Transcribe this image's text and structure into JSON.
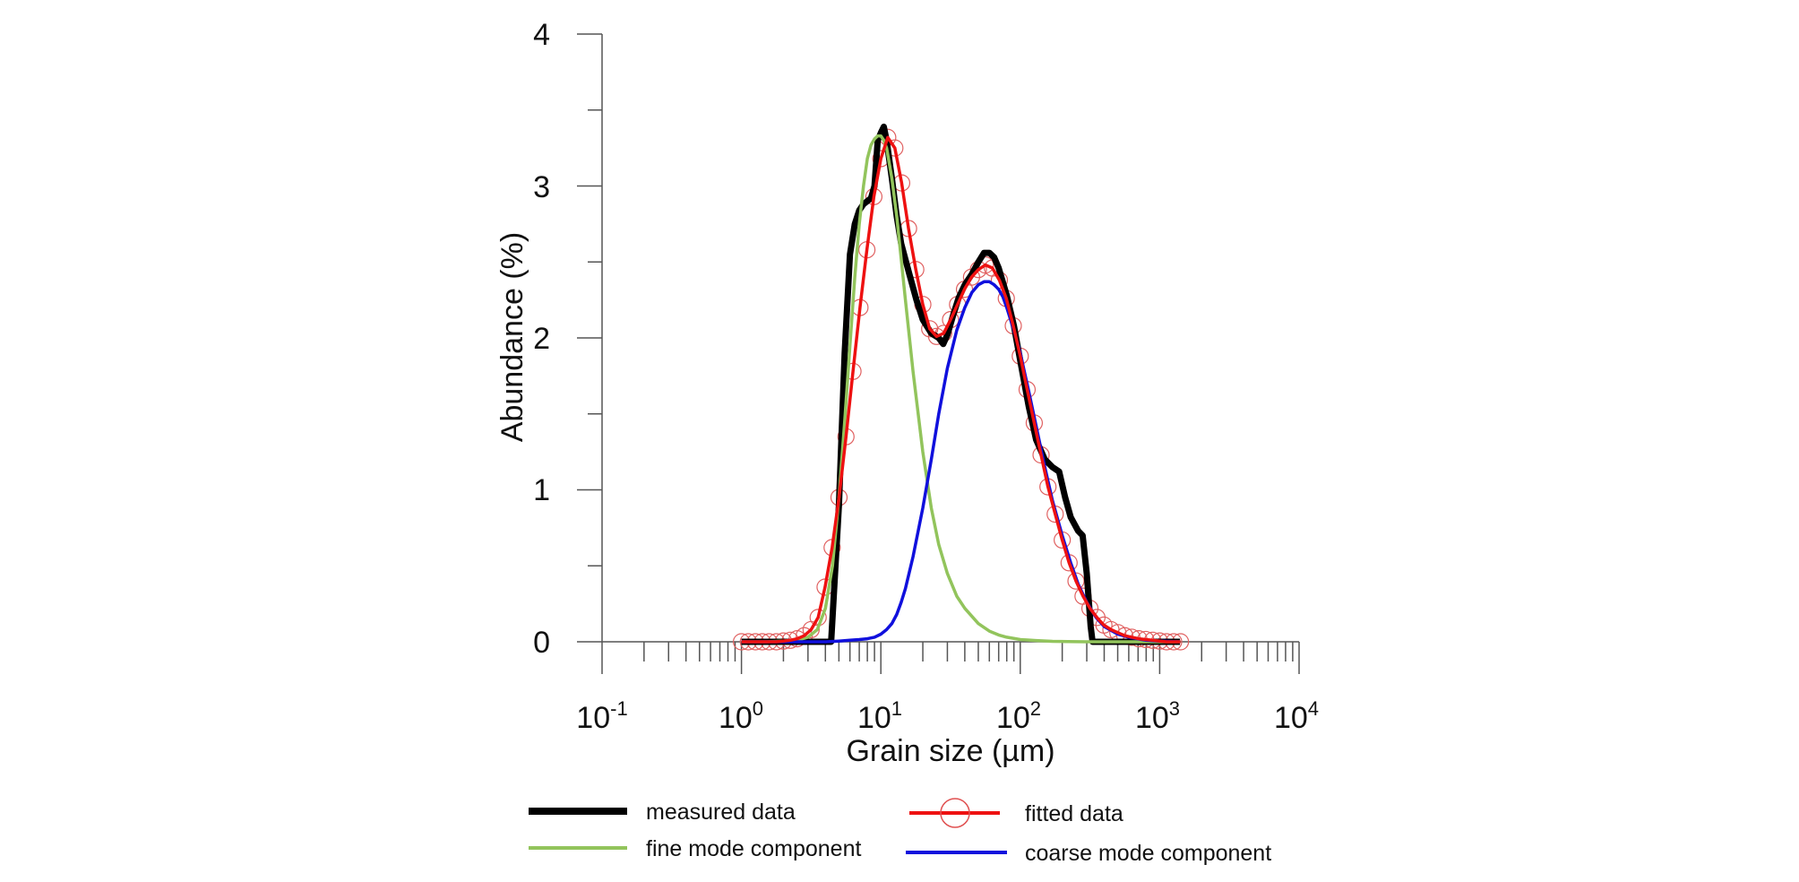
{
  "chart_data": {
    "type": "line",
    "title": "",
    "xlabel": "Grain size (µm)",
    "ylabel": "Abundance (%)",
    "xscale": "log",
    "xlim": [
      0.1,
      10000
    ],
    "ylim": [
      0,
      4
    ],
    "x_ticks": [
      {
        "base": "10",
        "exp": "-1",
        "value": 0.1
      },
      {
        "base": "10",
        "exp": "0",
        "value": 1
      },
      {
        "base": "10",
        "exp": "1",
        "value": 10
      },
      {
        "base": "10",
        "exp": "2",
        "value": 100
      },
      {
        "base": "10",
        "exp": "3",
        "value": 1000
      },
      {
        "base": "10",
        "exp": "4",
        "value": 10000
      }
    ],
    "y_ticks": [
      "0",
      "1",
      "2",
      "3",
      "4"
    ],
    "legend_position": "bottom",
    "series": [
      {
        "name": "measured data",
        "color": "#000000",
        "style": "thick-line",
        "x": [
          1,
          2,
          3,
          4,
          4.4,
          5,
          5.5,
          6,
          6.5,
          7,
          7.5,
          8,
          8.5,
          9,
          9.5,
          10,
          10.5,
          11,
          12,
          13,
          14,
          16,
          18,
          20,
          23,
          26,
          28,
          30,
          33,
          36,
          40,
          45,
          50,
          55,
          60,
          65,
          70,
          80,
          90,
          100,
          115,
          130,
          150,
          170,
          190,
          210,
          230,
          260,
          280,
          300,
          320,
          330,
          400,
          600,
          1000,
          1400
        ],
        "y": [
          0,
          0,
          0,
          0,
          0,
          0.9,
          1.9,
          2.55,
          2.75,
          2.84,
          2.88,
          2.9,
          2.92,
          3.0,
          3.3,
          3.35,
          3.39,
          3.3,
          3.05,
          2.8,
          2.62,
          2.42,
          2.25,
          2.12,
          2.03,
          2.0,
          1.96,
          2.02,
          2.15,
          2.26,
          2.35,
          2.42,
          2.5,
          2.56,
          2.56,
          2.53,
          2.46,
          2.28,
          2.08,
          1.85,
          1.55,
          1.33,
          1.2,
          1.15,
          1.12,
          0.95,
          0.82,
          0.73,
          0.7,
          0.45,
          0.1,
          0,
          0,
          0,
          0,
          0
        ]
      },
      {
        "name": "fitted data",
        "color": "#ee1111",
        "style": "line-with-circles",
        "x": [
          1,
          1.12,
          1.26,
          1.41,
          1.58,
          1.78,
          2,
          2.24,
          2.51,
          2.82,
          3.16,
          3.55,
          3.98,
          4.47,
          5.01,
          5.62,
          6.31,
          7.08,
          7.94,
          8.91,
          10,
          11.2,
          12.6,
          14.1,
          15.8,
          17.8,
          20,
          22.4,
          25.1,
          28.2,
          31.6,
          35.5,
          39.8,
          44.7,
          50.1,
          56.2,
          63.1,
          70.8,
          79.4,
          89.1,
          100,
          112,
          126,
          141,
          158,
          178,
          200,
          224,
          251,
          282,
          316,
          355,
          398,
          447,
          501,
          562,
          631,
          708,
          794,
          891,
          1000,
          1120,
          1260,
          1410
        ],
        "y": [
          0,
          0,
          0,
          0,
          0,
          0,
          0.005,
          0.01,
          0.02,
          0.04,
          0.08,
          0.16,
          0.36,
          0.62,
          0.95,
          1.35,
          1.78,
          2.2,
          2.58,
          2.93,
          3.18,
          3.32,
          3.25,
          3.02,
          2.72,
          2.45,
          2.22,
          2.06,
          2.01,
          2.03,
          2.12,
          2.22,
          2.32,
          2.4,
          2.45,
          2.48,
          2.46,
          2.38,
          2.26,
          2.08,
          1.88,
          1.66,
          1.44,
          1.23,
          1.02,
          0.84,
          0.67,
          0.52,
          0.4,
          0.3,
          0.22,
          0.16,
          0.11,
          0.08,
          0.06,
          0.04,
          0.03,
          0.02,
          0.015,
          0.01,
          0.005,
          0,
          0,
          0
        ]
      },
      {
        "name": "fine mode component",
        "color": "#92c45c",
        "style": "line",
        "x": [
          1,
          1.5,
          2,
          2.5,
          3,
          3.5,
          4,
          4.5,
          5,
          5.5,
          6,
          6.5,
          7,
          7.5,
          8,
          8.5,
          9,
          9.5,
          10,
          10.5,
          11,
          12,
          13,
          14,
          15,
          17,
          20,
          23,
          26,
          30,
          35,
          40,
          50,
          60,
          70,
          80,
          100,
          130,
          170,
          220,
          300,
          400,
          600,
          1000,
          1400
        ],
        "y": [
          0,
          0,
          0.005,
          0.01,
          0.03,
          0.08,
          0.22,
          0.5,
          0.95,
          1.45,
          1.95,
          2.4,
          2.75,
          3.0,
          3.18,
          3.27,
          3.31,
          3.33,
          3.33,
          3.3,
          3.25,
          3.05,
          2.8,
          2.52,
          2.25,
          1.78,
          1.25,
          0.88,
          0.64,
          0.45,
          0.3,
          0.22,
          0.12,
          0.07,
          0.045,
          0.03,
          0.015,
          0.008,
          0.003,
          0.001,
          0,
          0,
          0,
          0,
          0
        ]
      },
      {
        "name": "coarse mode component",
        "color": "#1010dd",
        "style": "line",
        "x": [
          1,
          2,
          3,
          4,
          5,
          6,
          7,
          8,
          9,
          10,
          11,
          12,
          13,
          14,
          15,
          17,
          20,
          23,
          26,
          30,
          35,
          40,
          45,
          50,
          55,
          60,
          65,
          70,
          75,
          80,
          90,
          100,
          115,
          130,
          150,
          170,
          200,
          230,
          260,
          300,
          350,
          400,
          500,
          600,
          800,
          1000,
          1400
        ],
        "y": [
          0,
          0,
          0,
          0,
          0.005,
          0.01,
          0.015,
          0.02,
          0.03,
          0.05,
          0.08,
          0.12,
          0.18,
          0.26,
          0.35,
          0.56,
          0.88,
          1.2,
          1.5,
          1.8,
          2.05,
          2.2,
          2.3,
          2.35,
          2.37,
          2.37,
          2.35,
          2.32,
          2.27,
          2.2,
          2.05,
          1.9,
          1.65,
          1.42,
          1.15,
          0.93,
          0.7,
          0.52,
          0.38,
          0.26,
          0.16,
          0.1,
          0.05,
          0.03,
          0.01,
          0.005,
          0
        ]
      }
    ]
  },
  "legend": [
    {
      "label": "measured data",
      "color": "#000000"
    },
    {
      "label": "fitted data",
      "color": "#ee1111"
    },
    {
      "label": "fine mode component",
      "color": "#92c45c"
    },
    {
      "label": "coarse mode component",
      "color": "#1010dd"
    }
  ]
}
